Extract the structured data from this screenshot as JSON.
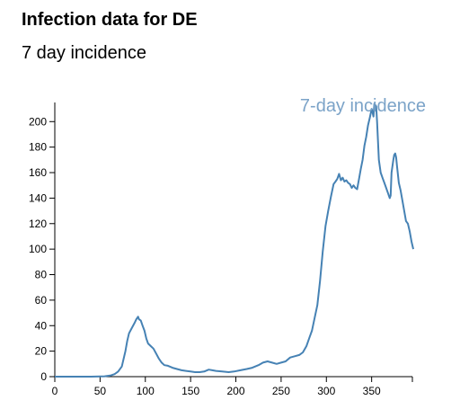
{
  "header": {
    "title": "Infection data for DE",
    "subtitle": "7 day incidence"
  },
  "chart_data": {
    "type": "line",
    "title": "Infection data for DE",
    "subtitle": "7 day incidence",
    "xlabel": "",
    "ylabel": "",
    "xlim": [
      0,
      395
    ],
    "ylim": [
      0,
      215
    ],
    "xticks": [
      0,
      50,
      100,
      150,
      200,
      250,
      300,
      350
    ],
    "yticks": [
      0,
      20,
      40,
      60,
      80,
      100,
      120,
      140,
      160,
      180,
      200
    ],
    "grid": false,
    "legend": "none",
    "series": [
      {
        "name": "7-day incidence",
        "color": "#4682b4",
        "label_color": "#7ba3c8",
        "points": [
          [
            0,
            0
          ],
          [
            20,
            0
          ],
          [
            40,
            0
          ],
          [
            55,
            0.3
          ],
          [
            62,
            1
          ],
          [
            66,
            2
          ],
          [
            70,
            4
          ],
          [
            74,
            8
          ],
          [
            76,
            14
          ],
          [
            78,
            20
          ],
          [
            80,
            28
          ],
          [
            82,
            34
          ],
          [
            85,
            38
          ],
          [
            88,
            42
          ],
          [
            90,
            45
          ],
          [
            92,
            47
          ],
          [
            93,
            45
          ],
          [
            95,
            44
          ],
          [
            97,
            40
          ],
          [
            99,
            36
          ],
          [
            101,
            30
          ],
          [
            103,
            26
          ],
          [
            106,
            24
          ],
          [
            109,
            22
          ],
          [
            112,
            18
          ],
          [
            115,
            14
          ],
          [
            118,
            11
          ],
          [
            121,
            9
          ],
          [
            125,
            8.5
          ],
          [
            130,
            7
          ],
          [
            135,
            6
          ],
          [
            140,
            5
          ],
          [
            145,
            4.5
          ],
          [
            150,
            4
          ],
          [
            155,
            3.5
          ],
          [
            160,
            3.5
          ],
          [
            165,
            4
          ],
          [
            170,
            5.5
          ],
          [
            174,
            5
          ],
          [
            178,
            4.5
          ],
          [
            185,
            4
          ],
          [
            192,
            3.5
          ],
          [
            198,
            4
          ],
          [
            205,
            5
          ],
          [
            212,
            6
          ],
          [
            218,
            7
          ],
          [
            225,
            9
          ],
          [
            230,
            11
          ],
          [
            235,
            12
          ],
          [
            240,
            11
          ],
          [
            245,
            10
          ],
          [
            250,
            11
          ],
          [
            255,
            12
          ],
          [
            260,
            15
          ],
          [
            265,
            16
          ],
          [
            270,
            17
          ],
          [
            274,
            19
          ],
          [
            278,
            24
          ],
          [
            281,
            30
          ],
          [
            284,
            36
          ],
          [
            287,
            46
          ],
          [
            290,
            56
          ],
          [
            293,
            75
          ],
          [
            296,
            98
          ],
          [
            299,
            118
          ],
          [
            302,
            130
          ],
          [
            305,
            141
          ],
          [
            308,
            151
          ],
          [
            310,
            153
          ],
          [
            312,
            155
          ],
          [
            314,
            159
          ],
          [
            316,
            154
          ],
          [
            318,
            156
          ],
          [
            320,
            153
          ],
          [
            322,
            154
          ],
          [
            324,
            152
          ],
          [
            326,
            151
          ],
          [
            328,
            148
          ],
          [
            330,
            150
          ],
          [
            332,
            148
          ],
          [
            334,
            147
          ],
          [
            336,
            155
          ],
          [
            338,
            163
          ],
          [
            340,
            170
          ],
          [
            342,
            181
          ],
          [
            344,
            188
          ],
          [
            346,
            197
          ],
          [
            348,
            203
          ],
          [
            350,
            210
          ],
          [
            352,
            204
          ],
          [
            353,
            214
          ],
          [
            355,
            212
          ],
          [
            356,
            200
          ],
          [
            357,
            185
          ],
          [
            358,
            170
          ],
          [
            360,
            160
          ],
          [
            362,
            156
          ],
          [
            364,
            152
          ],
          [
            366,
            148
          ],
          [
            368,
            144
          ],
          [
            370,
            140
          ],
          [
            371,
            142
          ],
          [
            372,
            160
          ],
          [
            374,
            170
          ],
          [
            375,
            174
          ],
          [
            376,
            175
          ],
          [
            377,
            172
          ],
          [
            378,
            165
          ],
          [
            380,
            152
          ],
          [
            382,
            146
          ],
          [
            384,
            138
          ],
          [
            386,
            130
          ],
          [
            388,
            122
          ],
          [
            390,
            120
          ],
          [
            392,
            114
          ],
          [
            394,
            106
          ],
          [
            396,
            100
          ]
        ]
      }
    ]
  }
}
